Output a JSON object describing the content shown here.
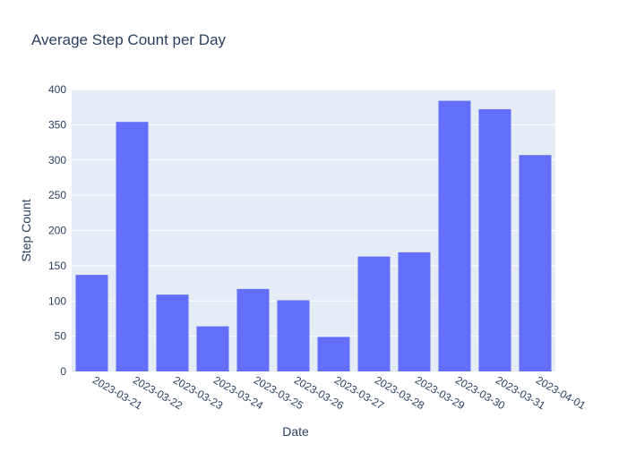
{
  "chart_data": {
    "type": "bar",
    "title": "Average Step Count per Day",
    "xlabel": "Date",
    "ylabel": "Step Count",
    "categories": [
      "2023-03-21",
      "2023-03-22",
      "2023-03-23",
      "2023-03-24",
      "2023-03-25",
      "2023-03-26",
      "2023-03-27",
      "2023-03-28",
      "2023-03-29",
      "2023-03-30",
      "2023-03-31",
      "2023-04-01"
    ],
    "values": [
      137,
      354,
      109,
      64,
      117,
      101,
      49,
      163,
      169,
      384,
      372,
      307
    ],
    "ylim": [
      0,
      400
    ],
    "yticks": [
      0,
      50,
      100,
      150,
      200,
      250,
      300,
      350,
      400
    ],
    "grid": true,
    "legend": "none",
    "colors": {
      "bar": "#636efa",
      "plot_background": "#e5ecf6",
      "grid": "#ffffff",
      "text": "#2a3f5f"
    }
  }
}
